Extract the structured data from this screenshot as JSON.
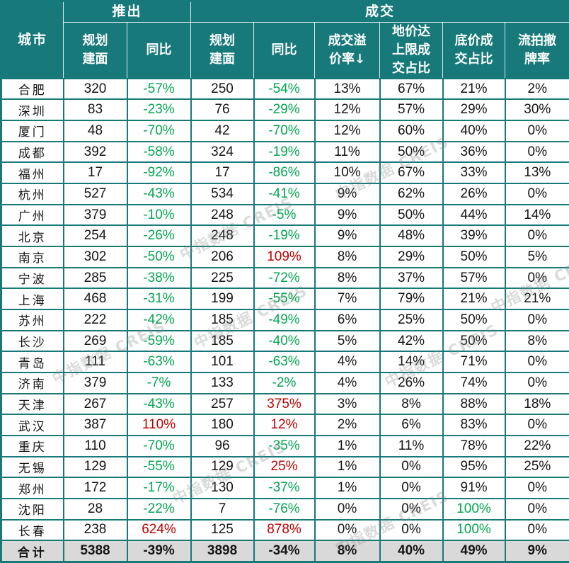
{
  "colors": {
    "header_teal": "#17797A",
    "border_teal": "#17797A",
    "positive_red": "#C00000",
    "negative_green": "#00A650",
    "total_row_gray": "#D9D9D9",
    "header_text": "#FFFFFF",
    "body_text": "#151515"
  },
  "watermark": {
    "text": "中指数据 CREIS"
  },
  "table": {
    "header": {
      "city": "城市",
      "launch_group": "推出",
      "deal_group": "成交",
      "sub": [
        "规划\n建面",
        "同比",
        "规划\n建面",
        "同比",
        "成交溢\n价率↓",
        "地价达\n上限成\n交占比",
        "底价成\n交占比",
        "流拍撤\n牌率"
      ]
    },
    "rows": [
      {
        "city": "合肥",
        "cells": [
          [
            "320",
            ""
          ],
          [
            "-57%",
            "g"
          ],
          [
            "250",
            ""
          ],
          [
            "-54%",
            "g"
          ],
          [
            "13%",
            ""
          ],
          [
            "67%",
            ""
          ],
          [
            "21%",
            ""
          ],
          [
            "2%",
            ""
          ]
        ]
      },
      {
        "city": "深圳",
        "cells": [
          [
            "83",
            ""
          ],
          [
            "-23%",
            "g"
          ],
          [
            "76",
            ""
          ],
          [
            "-29%",
            "g"
          ],
          [
            "12%",
            ""
          ],
          [
            "57%",
            ""
          ],
          [
            "29%",
            ""
          ],
          [
            "30%",
            ""
          ]
        ]
      },
      {
        "city": "厦门",
        "cells": [
          [
            "48",
            ""
          ],
          [
            "-70%",
            "g"
          ],
          [
            "42",
            ""
          ],
          [
            "-70%",
            "g"
          ],
          [
            "12%",
            ""
          ],
          [
            "60%",
            ""
          ],
          [
            "40%",
            ""
          ],
          [
            "0%",
            ""
          ]
        ]
      },
      {
        "city": "成都",
        "cells": [
          [
            "392",
            ""
          ],
          [
            "-58%",
            "g"
          ],
          [
            "324",
            ""
          ],
          [
            "-19%",
            "g"
          ],
          [
            "11%",
            ""
          ],
          [
            "50%",
            ""
          ],
          [
            "36%",
            ""
          ],
          [
            "0%",
            ""
          ]
        ]
      },
      {
        "city": "福州",
        "cells": [
          [
            "17",
            ""
          ],
          [
            "-92%",
            "g"
          ],
          [
            "17",
            ""
          ],
          [
            "-86%",
            "g"
          ],
          [
            "10%",
            ""
          ],
          [
            "67%",
            ""
          ],
          [
            "33%",
            ""
          ],
          [
            "13%",
            ""
          ]
        ]
      },
      {
        "city": "杭州",
        "cells": [
          [
            "527",
            ""
          ],
          [
            "-43%",
            "g"
          ],
          [
            "534",
            ""
          ],
          [
            "-41%",
            "g"
          ],
          [
            "9%",
            ""
          ],
          [
            "62%",
            ""
          ],
          [
            "26%",
            ""
          ],
          [
            "0%",
            ""
          ]
        ]
      },
      {
        "city": "广州",
        "cells": [
          [
            "379",
            ""
          ],
          [
            "-10%",
            "g"
          ],
          [
            "248",
            ""
          ],
          [
            "-5%",
            "g"
          ],
          [
            "9%",
            ""
          ],
          [
            "50%",
            ""
          ],
          [
            "44%",
            ""
          ],
          [
            "14%",
            ""
          ]
        ]
      },
      {
        "city": "北京",
        "cells": [
          [
            "254",
            ""
          ],
          [
            "-26%",
            "g"
          ],
          [
            "248",
            ""
          ],
          [
            "-19%",
            "g"
          ],
          [
            "9%",
            ""
          ],
          [
            "48%",
            ""
          ],
          [
            "39%",
            ""
          ],
          [
            "0%",
            ""
          ]
        ]
      },
      {
        "city": "南京",
        "cells": [
          [
            "302",
            ""
          ],
          [
            "-50%",
            "g"
          ],
          [
            "206",
            ""
          ],
          [
            "109%",
            "r"
          ],
          [
            "8%",
            ""
          ],
          [
            "29%",
            ""
          ],
          [
            "50%",
            ""
          ],
          [
            "5%",
            ""
          ]
        ]
      },
      {
        "city": "宁波",
        "cells": [
          [
            "285",
            ""
          ],
          [
            "-38%",
            "g"
          ],
          [
            "225",
            ""
          ],
          [
            "-72%",
            "g"
          ],
          [
            "8%",
            ""
          ],
          [
            "37%",
            ""
          ],
          [
            "57%",
            ""
          ],
          [
            "0%",
            ""
          ]
        ]
      },
      {
        "city": "上海",
        "cells": [
          [
            "468",
            ""
          ],
          [
            "-31%",
            "g"
          ],
          [
            "199",
            ""
          ],
          [
            "-55%",
            "g"
          ],
          [
            "7%",
            ""
          ],
          [
            "79%",
            ""
          ],
          [
            "21%",
            ""
          ],
          [
            "21%",
            ""
          ]
        ]
      },
      {
        "city": "苏州",
        "cells": [
          [
            "222",
            ""
          ],
          [
            "-42%",
            "g"
          ],
          [
            "185",
            ""
          ],
          [
            "-49%",
            "g"
          ],
          [
            "6%",
            ""
          ],
          [
            "25%",
            ""
          ],
          [
            "50%",
            ""
          ],
          [
            "0%",
            ""
          ]
        ]
      },
      {
        "city": "长沙",
        "cells": [
          [
            "269",
            ""
          ],
          [
            "-59%",
            "g"
          ],
          [
            "185",
            ""
          ],
          [
            "-40%",
            "g"
          ],
          [
            "5%",
            ""
          ],
          [
            "42%",
            ""
          ],
          [
            "50%",
            ""
          ],
          [
            "8%",
            ""
          ]
        ]
      },
      {
        "city": "青岛",
        "cells": [
          [
            "111",
            ""
          ],
          [
            "-63%",
            "g"
          ],
          [
            "101",
            ""
          ],
          [
            "-63%",
            "g"
          ],
          [
            "4%",
            ""
          ],
          [
            "14%",
            ""
          ],
          [
            "71%",
            ""
          ],
          [
            "0%",
            ""
          ]
        ]
      },
      {
        "city": "济南",
        "cells": [
          [
            "379",
            ""
          ],
          [
            "-7%",
            "g"
          ],
          [
            "133",
            ""
          ],
          [
            "-2%",
            "g"
          ],
          [
            "4%",
            ""
          ],
          [
            "26%",
            ""
          ],
          [
            "74%",
            ""
          ],
          [
            "0%",
            ""
          ]
        ]
      },
      {
        "city": "天津",
        "cells": [
          [
            "267",
            ""
          ],
          [
            "-43%",
            "g"
          ],
          [
            "257",
            ""
          ],
          [
            "375%",
            "r"
          ],
          [
            "3%",
            ""
          ],
          [
            "8%",
            ""
          ],
          [
            "88%",
            ""
          ],
          [
            "18%",
            ""
          ]
        ]
      },
      {
        "city": "武汉",
        "cells": [
          [
            "387",
            ""
          ],
          [
            "110%",
            "r"
          ],
          [
            "180",
            ""
          ],
          [
            "12%",
            "r"
          ],
          [
            "2%",
            ""
          ],
          [
            "6%",
            ""
          ],
          [
            "83%",
            ""
          ],
          [
            "0%",
            ""
          ]
        ]
      },
      {
        "city": "重庆",
        "cells": [
          [
            "110",
            ""
          ],
          [
            "-70%",
            "g"
          ],
          [
            "96",
            ""
          ],
          [
            "-35%",
            "g"
          ],
          [
            "1%",
            ""
          ],
          [
            "11%",
            ""
          ],
          [
            "78%",
            ""
          ],
          [
            "22%",
            ""
          ]
        ]
      },
      {
        "city": "无锡",
        "cells": [
          [
            "129",
            ""
          ],
          [
            "-55%",
            "g"
          ],
          [
            "129",
            ""
          ],
          [
            "25%",
            "r"
          ],
          [
            "1%",
            ""
          ],
          [
            "0%",
            ""
          ],
          [
            "95%",
            ""
          ],
          [
            "25%",
            ""
          ]
        ]
      },
      {
        "city": "郑州",
        "cells": [
          [
            "172",
            ""
          ],
          [
            "-17%",
            "g"
          ],
          [
            "130",
            ""
          ],
          [
            "-37%",
            "g"
          ],
          [
            "1%",
            ""
          ],
          [
            "0%",
            ""
          ],
          [
            "91%",
            ""
          ],
          [
            "0%",
            ""
          ]
        ]
      },
      {
        "city": "沈阳",
        "cells": [
          [
            "28",
            ""
          ],
          [
            "-22%",
            "g"
          ],
          [
            "7",
            ""
          ],
          [
            "-76%",
            "g"
          ],
          [
            "0%",
            ""
          ],
          [
            "0%",
            ""
          ],
          [
            "100%",
            "g"
          ],
          [
            "0%",
            ""
          ]
        ]
      },
      {
        "city": "长春",
        "cells": [
          [
            "238",
            ""
          ],
          [
            "624%",
            "r"
          ],
          [
            "125",
            ""
          ],
          [
            "878%",
            "r"
          ],
          [
            "0%",
            ""
          ],
          [
            "0%",
            ""
          ],
          [
            "100%",
            "g"
          ],
          [
            "0%",
            ""
          ]
        ]
      }
    ],
    "total": {
      "city": "合计",
      "cells": [
        [
          "5388",
          ""
        ],
        [
          "-39%",
          ""
        ],
        [
          "3898",
          ""
        ],
        [
          "-34%",
          ""
        ],
        [
          "8%",
          ""
        ],
        [
          "40%",
          ""
        ],
        [
          "49%",
          ""
        ],
        [
          "9%",
          ""
        ]
      ]
    }
  }
}
